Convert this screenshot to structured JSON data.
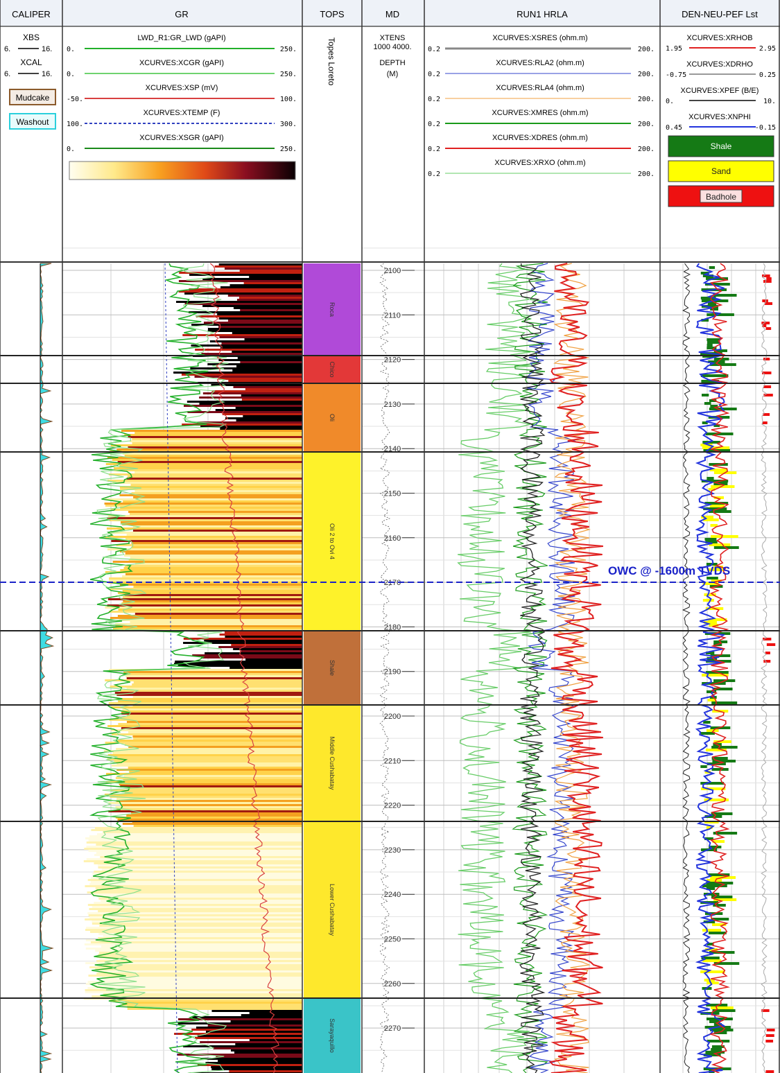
{
  "tracks": {
    "caliper": "CALIPER",
    "gr": "GR",
    "tops": "TOPS",
    "md": "MD",
    "resistivity": "RUN1 HRLA",
    "density": "DEN-NEU-PEF Lst"
  },
  "caliper_header": {
    "xbs_name": "XBS",
    "xbs_left": "6.",
    "xbs_right": "16.",
    "xcal_name": "XCAL",
    "xcal_left": "6.",
    "xcal_right": "16.",
    "mudcake_label": "Mudcake",
    "washout_label": "Washout"
  },
  "gr_header": [
    {
      "name": "LWD_R1:GR_LWD (gAPI)",
      "left": "0.",
      "right": "250.",
      "color": "#22b02a",
      "dash": false
    },
    {
      "name": "XCURVES:XCGR (gAPI)",
      "left": "0.",
      "right": "250.",
      "color": "#6fd36f",
      "dash": false
    },
    {
      "name": "XCURVES:XSP (mV)",
      "left": "-50.",
      "right": "100.",
      "color": "#d84040",
      "dash": false
    },
    {
      "name": "XCURVES:XTEMP (F)",
      "left": "100.",
      "right": "300.",
      "color": "#3040c0",
      "dash": true
    },
    {
      "name": "XCURVES:XSGR (gAPI)",
      "left": "0.",
      "right": "250.",
      "color": "#1a8a1a",
      "dash": false
    }
  ],
  "tops_header": "Topes Loreto",
  "md_header": {
    "curve": "XTENS",
    "range": "1000 4000.",
    "depth_label": "DEPTH",
    "unit": "(M)"
  },
  "res_header": [
    {
      "name": "XCURVES:XSRES (ohm.m)",
      "left": "0.2",
      "right": "200.",
      "color": "#888888",
      "width": 3
    },
    {
      "name": "XCURVES:RLA2 (ohm.m)",
      "left": "0.2",
      "right": "200.",
      "color": "#3344cc",
      "width": 1
    },
    {
      "name": "XCURVES:RLA4 (ohm.m)",
      "left": "0.2",
      "right": "200.",
      "color": "#f0a040",
      "width": 1
    },
    {
      "name": "XCURVES:XMRES (ohm.m)",
      "left": "0.2",
      "right": "200.",
      "color": "#1a9a1a",
      "width": 2
    },
    {
      "name": "XCURVES:XDRES (ohm.m)",
      "left": "0.2",
      "right": "200.",
      "color": "#e02020",
      "width": 2
    },
    {
      "name": "XCURVES:XRXO (ohm.m)",
      "left": "0.2",
      "right": "200.",
      "color": "#66cc66",
      "width": 1
    }
  ],
  "den_header": [
    {
      "name": "XCURVES:XRHOB",
      "left": "1.95",
      "right": "2.95",
      "color": "#e02020"
    },
    {
      "name": "XCURVES:XDRHO",
      "left": "-0.75",
      "right": "0.25",
      "color": "#999999"
    },
    {
      "name": "XCURVES:XPEF (B/E)",
      "left": "0.",
      "right": "10.",
      "color": "#444444"
    },
    {
      "name": "XCURVES:XNPHI",
      "left": "0.45",
      "right": "-0.15",
      "color": "#2233dd"
    }
  ],
  "legend": {
    "shale": "Shale",
    "shale_color": "#157a15",
    "sand": "Sand",
    "sand_color": "#ffff00",
    "badhole": "Badhole",
    "badhole_color": "#ee1111"
  },
  "depth_labels": [
    "2100",
    "2110",
    "2120",
    "2130",
    "2140",
    "2150",
    "2160",
    "2170",
    "2180",
    "2190",
    "2200",
    "2210",
    "2220",
    "2230",
    "2240",
    "2250",
    "2260",
    "2270"
  ],
  "formations": [
    {
      "name": "Roca",
      "color": "#b04ad8"
    },
    {
      "name": "Chico",
      "color": "#e33838"
    },
    {
      "name": "Oli",
      "color": "#f08a2a"
    },
    {
      "name": "Oli 2 to Ovi 4",
      "color": "#fef22a"
    },
    {
      "name": "Shale",
      "color": "#c0703a"
    },
    {
      "name": "Middle Cushabatay",
      "color": "#fee82c"
    },
    {
      "name": "Lower Cushabatay",
      "color": "#fee82c"
    },
    {
      "name": "Sarayaquillo",
      "color": "#3ac4c8"
    }
  ],
  "owc_label": "OWC @ -1600m TVDS"
}
